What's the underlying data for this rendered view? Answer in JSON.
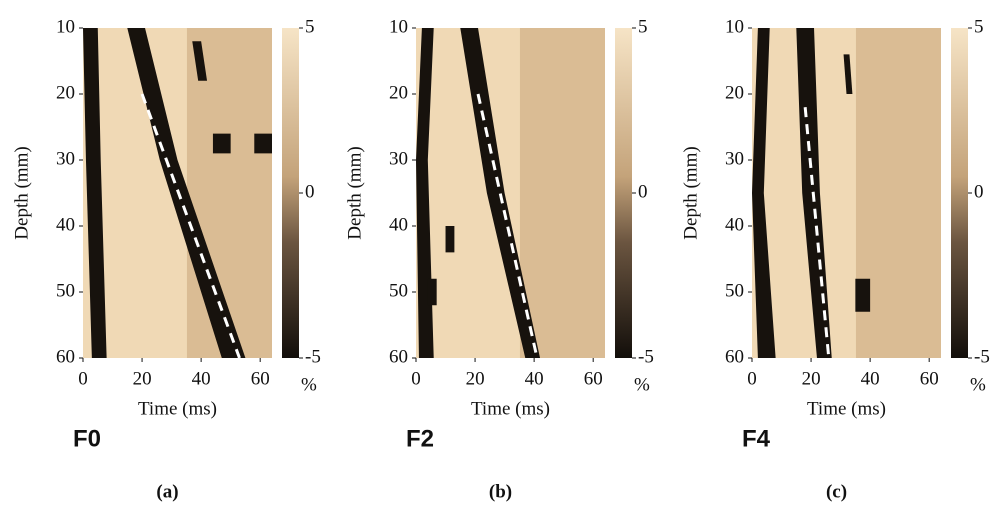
{
  "chart_data": [
    {
      "type": "heatmap",
      "panel_label": "F0",
      "caption": "(a)",
      "x_label": "Time (ms)",
      "y_label": "Depth (mm)",
      "xlim": [
        0,
        64
      ],
      "xticks": [
        0,
        20,
        40,
        60
      ],
      "ylim": [
        10,
        60
      ],
      "yticks": [
        10,
        20,
        30,
        40,
        50,
        60
      ],
      "y_inverted": true,
      "clim": [
        -5,
        5
      ],
      "cticks": [
        -5,
        0,
        5
      ],
      "colorbar_label": "%",
      "fit_line": {
        "x": [
          20,
          53
        ],
        "y": [
          20,
          60
        ]
      }
    },
    {
      "type": "heatmap",
      "panel_label": "F2",
      "caption": "(b)",
      "x_label": "Time (ms)",
      "y_label": "Depth (mm)",
      "xlim": [
        0,
        64
      ],
      "xticks": [
        0,
        20,
        40,
        60
      ],
      "ylim": [
        10,
        60
      ],
      "yticks": [
        10,
        20,
        30,
        40,
        50,
        60
      ],
      "y_inverted": true,
      "clim": [
        -5,
        5
      ],
      "cticks": [
        -5,
        0,
        5
      ],
      "colorbar_label": "%",
      "fit_line": {
        "x": [
          21,
          41
        ],
        "y": [
          20,
          60
        ]
      }
    },
    {
      "type": "heatmap",
      "panel_label": "F4",
      "caption": "(c)",
      "x_label": "Time (ms)",
      "y_label": "Depth (mm)",
      "xlim": [
        0,
        64
      ],
      "xticks": [
        0,
        20,
        40,
        60
      ],
      "ylim": [
        10,
        60
      ],
      "yticks": [
        10,
        20,
        30,
        40,
        50,
        60
      ],
      "y_inverted": true,
      "clim": [
        -5,
        5
      ],
      "cticks": [
        -5,
        0,
        5
      ],
      "colorbar_label": "%",
      "fit_line": {
        "x": [
          18,
          26
        ],
        "y": [
          22,
          60
        ]
      }
    }
  ]
}
